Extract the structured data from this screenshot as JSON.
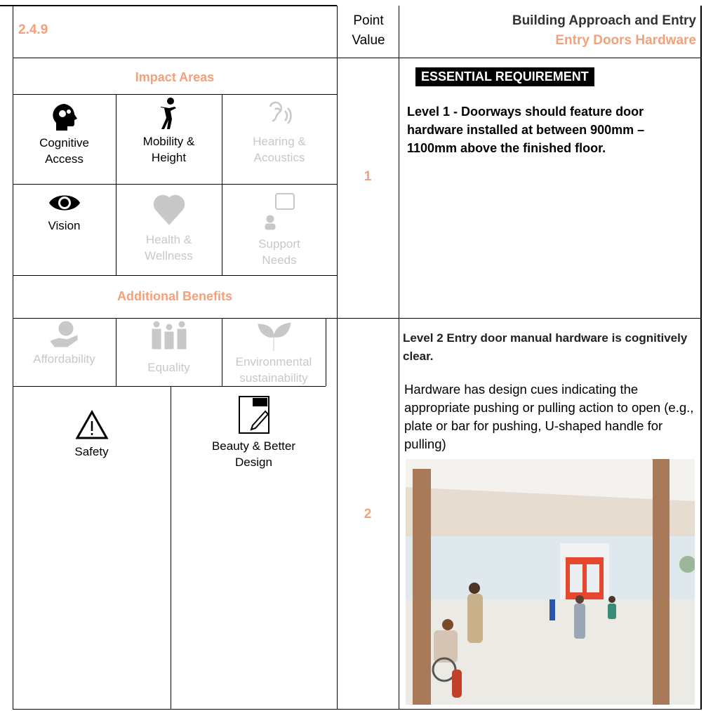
{
  "header": {
    "code": "2.4.9",
    "point_value_header": "Point Value",
    "title": "Building Approach and Entry",
    "subtitle": "Entry Doors Hardware"
  },
  "impact_areas": {
    "heading": "Impact Areas",
    "items": [
      {
        "label": "Cognitive Access",
        "active": true
      },
      {
        "label": "Mobility & Height",
        "active": true
      },
      {
        "label": "Hearing & Acoustics",
        "active": false
      },
      {
        "label": "Vision",
        "active": true
      },
      {
        "label": "Health & Wellness",
        "active": false
      },
      {
        "label": "Support Needs",
        "active": false
      }
    ]
  },
  "additional_benefits": {
    "heading": "Additional Benefits",
    "items": [
      {
        "label": "Affordability",
        "active": false
      },
      {
        "label": "Equality",
        "active": false
      },
      {
        "label": "Environmental sustainability",
        "active": false
      },
      {
        "label": "Safety",
        "active": true
      },
      {
        "label": "Beauty & Better Design",
        "active": true
      }
    ]
  },
  "levels": [
    {
      "points": 1,
      "badge": "ESSENTIAL REQUIREMENT",
      "text": "Level 1 - Doorways should feature door hardware installed at between 900mm – 1100mm above the finished floor."
    },
    {
      "points": 2,
      "heading": "Level 2 Entry door manual hardware is cognitively clear.",
      "text": "Hardware has design cues indicating the appropriate pushing or pulling action to open (e.g., plate or bar for pushing, U-shaped handle for pulling)"
    }
  ]
}
